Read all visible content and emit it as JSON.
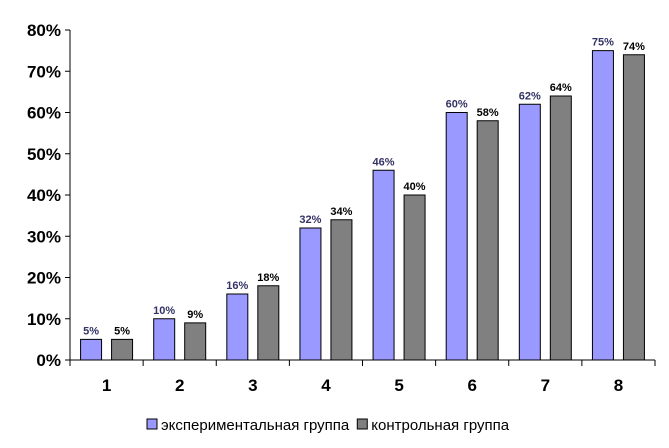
{
  "chart_data": {
    "type": "bar",
    "categories": [
      "1",
      "2",
      "3",
      "4",
      "5",
      "6",
      "7",
      "8"
    ],
    "series": [
      {
        "name": "экспериментальная группа",
        "values": [
          5,
          10,
          16,
          32,
          46,
          60,
          62,
          75
        ],
        "labels": [
          "5%",
          "10%",
          "16%",
          "32%",
          "46%",
          "60%",
          "62%",
          "75%"
        ],
        "color": "#9999ff",
        "label_color": "#333366"
      },
      {
        "name": "контрольная группа",
        "values": [
          5,
          9,
          18,
          34,
          40,
          58,
          64,
          74
        ],
        "labels": [
          "5%",
          "9%",
          "18%",
          "34%",
          "40%",
          "58%",
          "64%",
          "74%"
        ],
        "color": "#808080",
        "label_color": "#000000"
      }
    ],
    "ylim": [
      0,
      80
    ],
    "yticks": [
      0,
      10,
      20,
      30,
      40,
      50,
      60,
      70,
      80
    ],
    "ytick_labels": [
      "0%",
      "10%",
      "20%",
      "30%",
      "40%",
      "50%",
      "60%",
      "70%",
      "80%"
    ],
    "title": "",
    "xlabel": "",
    "ylabel": "",
    "grid": false,
    "legend_position": "bottom"
  }
}
